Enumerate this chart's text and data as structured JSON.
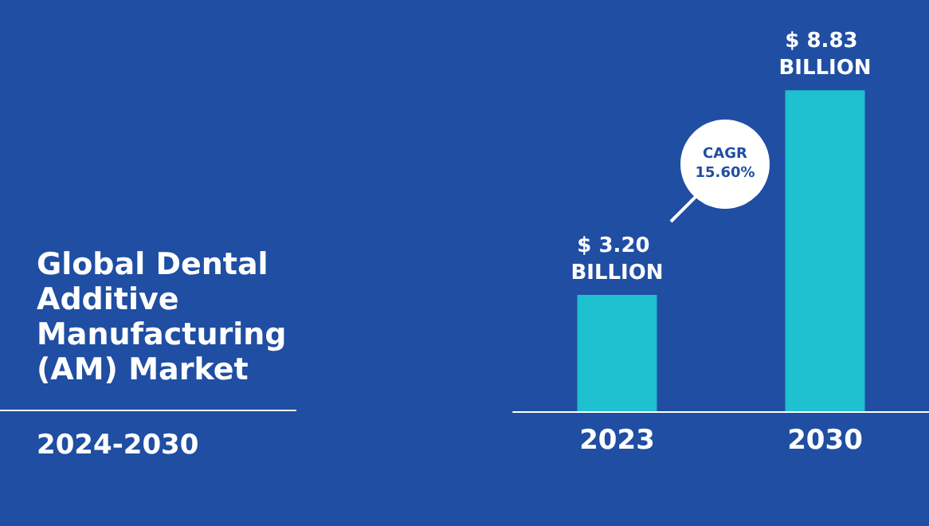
{
  "chart_data": {
    "type": "bar",
    "title": "Global Dental Additive Manufacturing (AM) Market",
    "subtitle": "2024-2030",
    "categories": [
      "2023",
      "2030"
    ],
    "values": [
      3.2,
      8.83
    ],
    "color": "#1fc0cf",
    "value_labels": [
      "$ 3.20 BILLION",
      "$ 8.83 BILLION"
    ],
    "annotations": [
      "CAGR 15.60%"
    ]
  }
}
